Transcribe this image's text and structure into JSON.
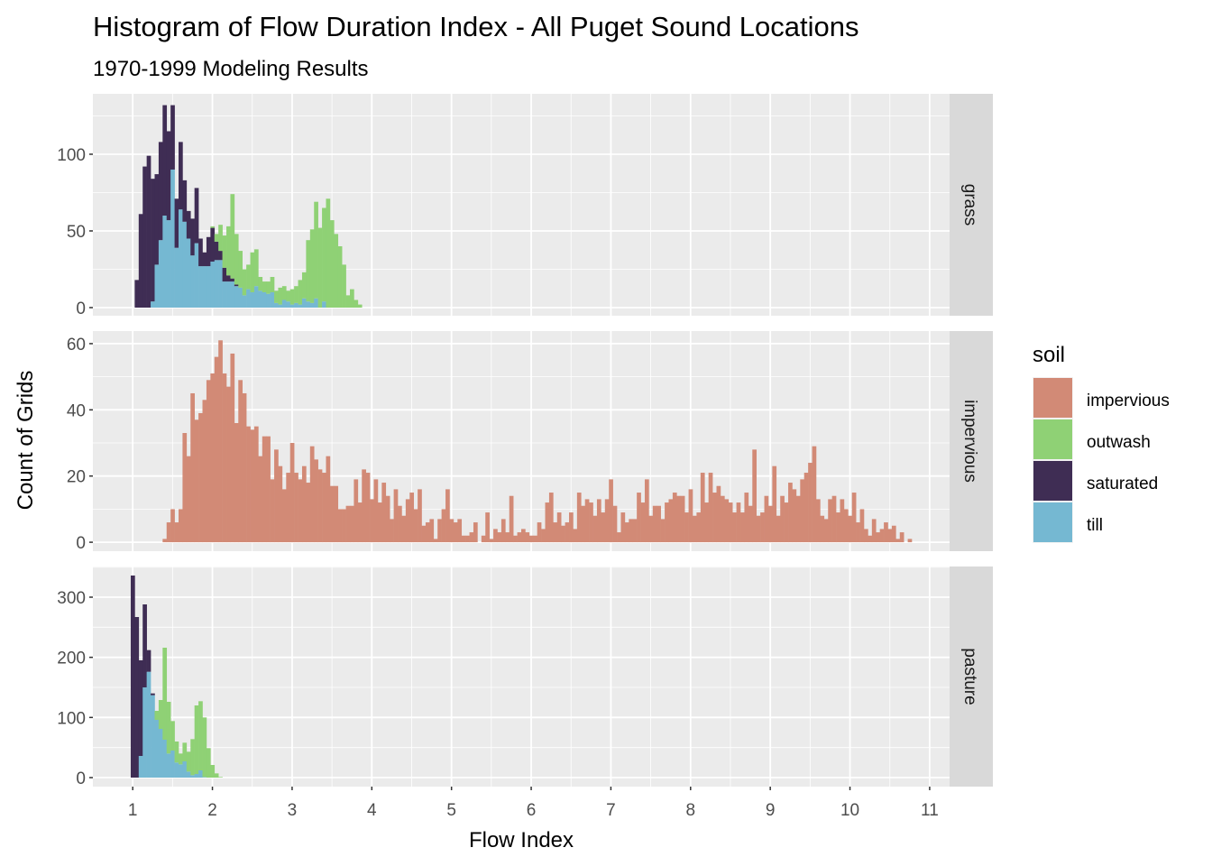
{
  "chart_data": {
    "type": "bar",
    "subtype": "stacked-histogram-faceted",
    "title": "Histogram of Flow Duration Index - All Puget Sound Locations",
    "subtitle": "1970-1999 Modeling Results",
    "xlabel": "Flow Index",
    "ylabel": "Count of Grids",
    "xlim": [
      0.5,
      11.25
    ],
    "xticks": [
      "1",
      "2",
      "3",
      "4",
      "5",
      "6",
      "7",
      "8",
      "9",
      "10",
      "11"
    ],
    "binwidth": 0.05,
    "grid": true,
    "legend": {
      "title": "soil",
      "position": "right",
      "entries": [
        {
          "label": "impervious",
          "color": "#d28a76"
        },
        {
          "label": "outwash",
          "color": "#8fd175"
        },
        {
          "label": "saturated",
          "color": "#3f2d54"
        },
        {
          "label": "till",
          "color": "#75b8d2"
        }
      ]
    },
    "stack_order_bottom_to_top": [
      "till",
      "saturated",
      "outwash",
      "impervious"
    ],
    "facets": [
      {
        "label": "grass",
        "ylim": [
          -5.3,
          139.4
        ],
        "yticks": [
          0,
          50,
          100
        ],
        "first_bin_center": 1.05,
        "series": {
          "till": [
            0,
            0,
            0,
            0,
            4,
            28,
            44,
            60,
            57,
            90,
            39,
            64,
            56,
            45,
            34,
            42,
            27,
            27,
            27,
            30,
            31,
            31,
            17,
            17,
            17,
            14,
            13,
            8,
            12,
            10,
            14,
            11,
            10,
            9,
            10,
            3,
            2,
            5,
            4,
            2,
            3,
            2,
            6,
            4,
            3,
            6,
            0,
            4,
            0,
            0,
            0,
            0,
            0,
            0,
            0,
            0,
            0
          ],
          "saturated": [
            18,
            61,
            92,
            99,
            80,
            59,
            64,
            72,
            58,
            42,
            32,
            44,
            27,
            18,
            24,
            36,
            18,
            9,
            19,
            22,
            12,
            6,
            9,
            4,
            2,
            1,
            0,
            0,
            0,
            0,
            0,
            0,
            0,
            0,
            0,
            0,
            0,
            0,
            0,
            0,
            0,
            0,
            0,
            0,
            0,
            0,
            0,
            0,
            0,
            0,
            0,
            0,
            0,
            0,
            0,
            0,
            0
          ],
          "outwash": [
            0,
            0,
            0,
            0,
            0,
            0,
            0,
            0,
            0,
            0,
            0,
            0,
            0,
            0,
            0,
            0,
            0,
            0,
            0,
            1,
            5,
            17,
            21,
            32,
            55,
            33,
            24,
            17,
            16,
            26,
            24,
            9,
            7,
            8,
            10,
            8,
            11,
            9,
            7,
            10,
            11,
            16,
            17,
            40,
            48,
            63,
            52,
            61,
            71,
            57,
            48,
            40,
            28,
            8,
            12,
            5,
            2
          ]
        }
      },
      {
        "label": "impervious",
        "ylim": [
          -2.7,
          63.8
        ],
        "yticks": [
          0,
          20,
          40,
          60
        ],
        "first_bin_center": 1.4,
        "series": {
          "impervious": [
            1,
            6,
            10,
            6,
            10,
            33,
            26,
            45,
            37,
            39,
            43,
            49,
            51,
            56,
            61,
            51,
            47,
            57,
            36,
            49,
            45,
            35,
            34,
            35,
            26,
            32,
            32,
            19,
            28,
            23,
            16,
            21,
            30,
            21,
            19,
            23,
            18,
            29,
            25,
            22,
            21,
            26,
            17,
            17,
            10,
            10,
            11,
            11,
            19,
            12,
            22,
            21,
            13,
            19,
            12,
            18,
            14,
            7,
            16,
            11,
            8,
            13,
            15,
            10,
            16,
            5,
            6,
            7,
            1,
            7,
            10,
            16,
            7,
            6,
            7,
            2,
            2,
            3,
            6,
            0,
            2,
            9,
            1,
            4,
            3,
            7,
            3,
            14,
            2,
            3,
            4,
            3,
            2,
            2,
            6,
            4,
            12,
            15,
            6,
            9,
            5,
            6,
            9,
            4,
            15,
            11,
            13,
            12,
            8,
            13,
            9,
            13,
            19,
            11,
            3,
            9,
            6,
            7,
            7,
            15,
            12,
            19,
            8,
            11,
            11,
            7,
            12,
            13,
            15,
            14,
            14,
            9,
            16,
            8,
            9,
            21,
            12,
            21,
            15,
            17,
            14,
            13,
            12,
            9,
            12,
            9,
            15,
            11,
            28,
            8,
            9,
            14,
            11,
            23,
            8,
            14,
            12,
            18,
            16,
            14,
            19,
            21,
            24,
            29,
            13,
            8,
            7,
            13,
            14,
            9,
            13,
            10,
            8,
            15,
            6,
            10,
            4,
            2,
            7,
            3,
            4,
            6,
            4,
            5,
            1,
            3,
            0,
            1
          ]
        }
      },
      {
        "label": "pasture",
        "ylim": [
          -15,
          351
        ],
        "yticks": [
          0,
          100,
          200,
          300
        ],
        "first_bin_center": 1.0,
        "series": {
          "till": [
            0,
            0,
            36,
            150,
            176,
            137,
            96,
            81,
            63,
            40,
            45,
            25,
            22,
            27,
            10,
            4,
            6,
            12,
            1,
            0,
            0,
            0,
            0
          ],
          "saturated": [
            336,
            267,
            159,
            138,
            36,
            3,
            0,
            0,
            0,
            0,
            0,
            0,
            0,
            0,
            0,
            0,
            0,
            0,
            0,
            0,
            0,
            0,
            0
          ],
          "outwash": [
            0,
            0,
            0,
            0,
            0,
            0,
            15,
            48,
            153,
            86,
            49,
            35,
            18,
            31,
            33,
            60,
            114,
            115,
            99,
            49,
            21,
            7,
            1
          ]
        }
      }
    ]
  }
}
